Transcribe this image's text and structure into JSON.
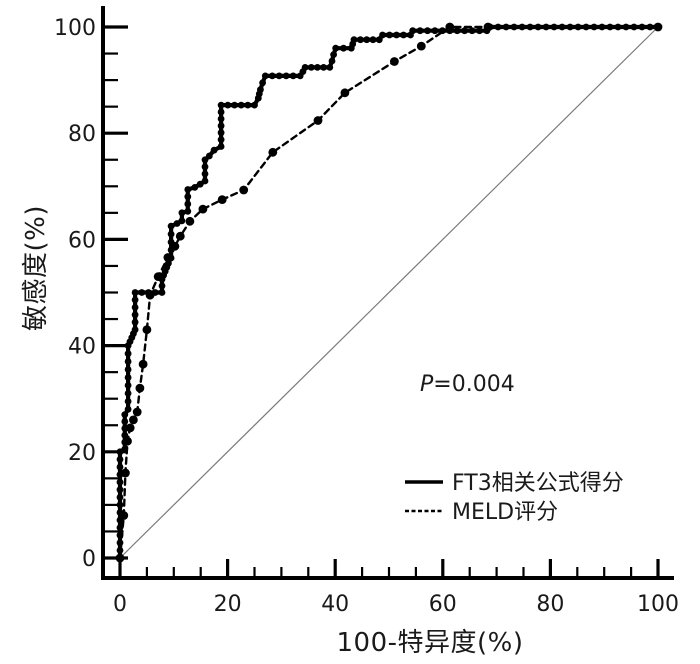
{
  "figure": {
    "background": "#ffffff",
    "p_italic": "P",
    "p_rest": "=0.004"
  },
  "chart_data": {
    "type": "line",
    "subtype": "roc-curve",
    "title": "",
    "xlabel": "100-特异度(%)",
    "ylabel": "敏感度(%)",
    "xlim": [
      0,
      100
    ],
    "ylim": [
      0,
      100
    ],
    "x_major_ticks": [
      0,
      20,
      40,
      60,
      80,
      100
    ],
    "y_major_ticks": [
      0,
      20,
      40,
      60,
      80,
      100
    ],
    "minor_tick_step": 5,
    "grid": false,
    "legend_position": "lower-right",
    "annotation": "P=0.004",
    "axis_color": "#000000",
    "reference_line": {
      "name": "chance-diagonal",
      "from": [
        0,
        0
      ],
      "to": [
        100,
        100
      ],
      "color": "#7a7a7a"
    },
    "series": [
      {
        "name": "FT3相关公式得分",
        "style": "solid",
        "color": "#000000",
        "line_width": 4.2,
        "marker": "circle",
        "marker_radius": 3.4,
        "marker_density": "dense",
        "points": [
          [
            0,
            0
          ],
          [
            0,
            20
          ],
          [
            0.9,
            20.5
          ],
          [
            0.9,
            27
          ],
          [
            1.5,
            28
          ],
          [
            1.5,
            40
          ],
          [
            2.2,
            41.5
          ],
          [
            2.8,
            43
          ],
          [
            2.8,
            50
          ],
          [
            7.8,
            50
          ],
          [
            7.8,
            52.5
          ],
          [
            8.4,
            54
          ],
          [
            9,
            55.5
          ],
          [
            9.5,
            56.5
          ],
          [
            9.5,
            62.5
          ],
          [
            10.6,
            63
          ],
          [
            11.5,
            63.5
          ],
          [
            11.5,
            65
          ],
          [
            12.6,
            65.3
          ],
          [
            12.6,
            69.4
          ],
          [
            13.9,
            69.8
          ],
          [
            14.9,
            70.4
          ],
          [
            15.8,
            71
          ],
          [
            15.8,
            75
          ],
          [
            16.6,
            75.7
          ],
          [
            17.5,
            76.8
          ],
          [
            18.8,
            77.5
          ],
          [
            18.8,
            85.3
          ],
          [
            25,
            85.3
          ],
          [
            25.7,
            86.6
          ],
          [
            26.1,
            88.2
          ],
          [
            26.5,
            89.5
          ],
          [
            27,
            90.8
          ],
          [
            33.5,
            90.8
          ],
          [
            34,
            91.6
          ],
          [
            34.4,
            92.4
          ],
          [
            39,
            92.4
          ],
          [
            39.4,
            93.6
          ],
          [
            39.7,
            94.8
          ],
          [
            40.1,
            96
          ],
          [
            43,
            96
          ],
          [
            43.5,
            97.6
          ],
          [
            48.2,
            97.6
          ],
          [
            48.8,
            98.5
          ],
          [
            54,
            98.5
          ],
          [
            54.4,
            99.3
          ],
          [
            68.2,
            99.3
          ],
          [
            68.8,
            100
          ],
          [
            100,
            100
          ]
        ]
      },
      {
        "name": "MELD评分",
        "style": "dashed",
        "color": "#000000",
        "line_width": 2.4,
        "marker": "circle",
        "marker_radius": 4.4,
        "marker_density": "sparse",
        "points": [
          [
            0,
            0
          ],
          [
            0.7,
            8
          ],
          [
            1,
            16
          ],
          [
            1.4,
            22
          ],
          [
            1.9,
            24.5
          ],
          [
            2.5,
            26
          ],
          [
            3.2,
            27.5
          ],
          [
            3.7,
            32
          ],
          [
            4.3,
            36.5
          ],
          [
            5,
            43
          ],
          [
            5.6,
            49.5
          ],
          [
            7.1,
            53
          ],
          [
            8.9,
            56.6
          ],
          [
            10.2,
            58.7
          ],
          [
            11.2,
            60.6
          ],
          [
            13,
            63.4
          ],
          [
            15.4,
            65.7
          ],
          [
            19,
            67.5
          ],
          [
            23,
            69.3
          ],
          [
            28.4,
            76.4
          ],
          [
            36.8,
            82.4
          ],
          [
            41.8,
            87.6
          ],
          [
            51,
            93.5
          ],
          [
            56,
            96.4
          ],
          [
            61.3,
            100
          ],
          [
            68.4,
            100
          ],
          [
            100,
            100
          ]
        ]
      }
    ]
  }
}
